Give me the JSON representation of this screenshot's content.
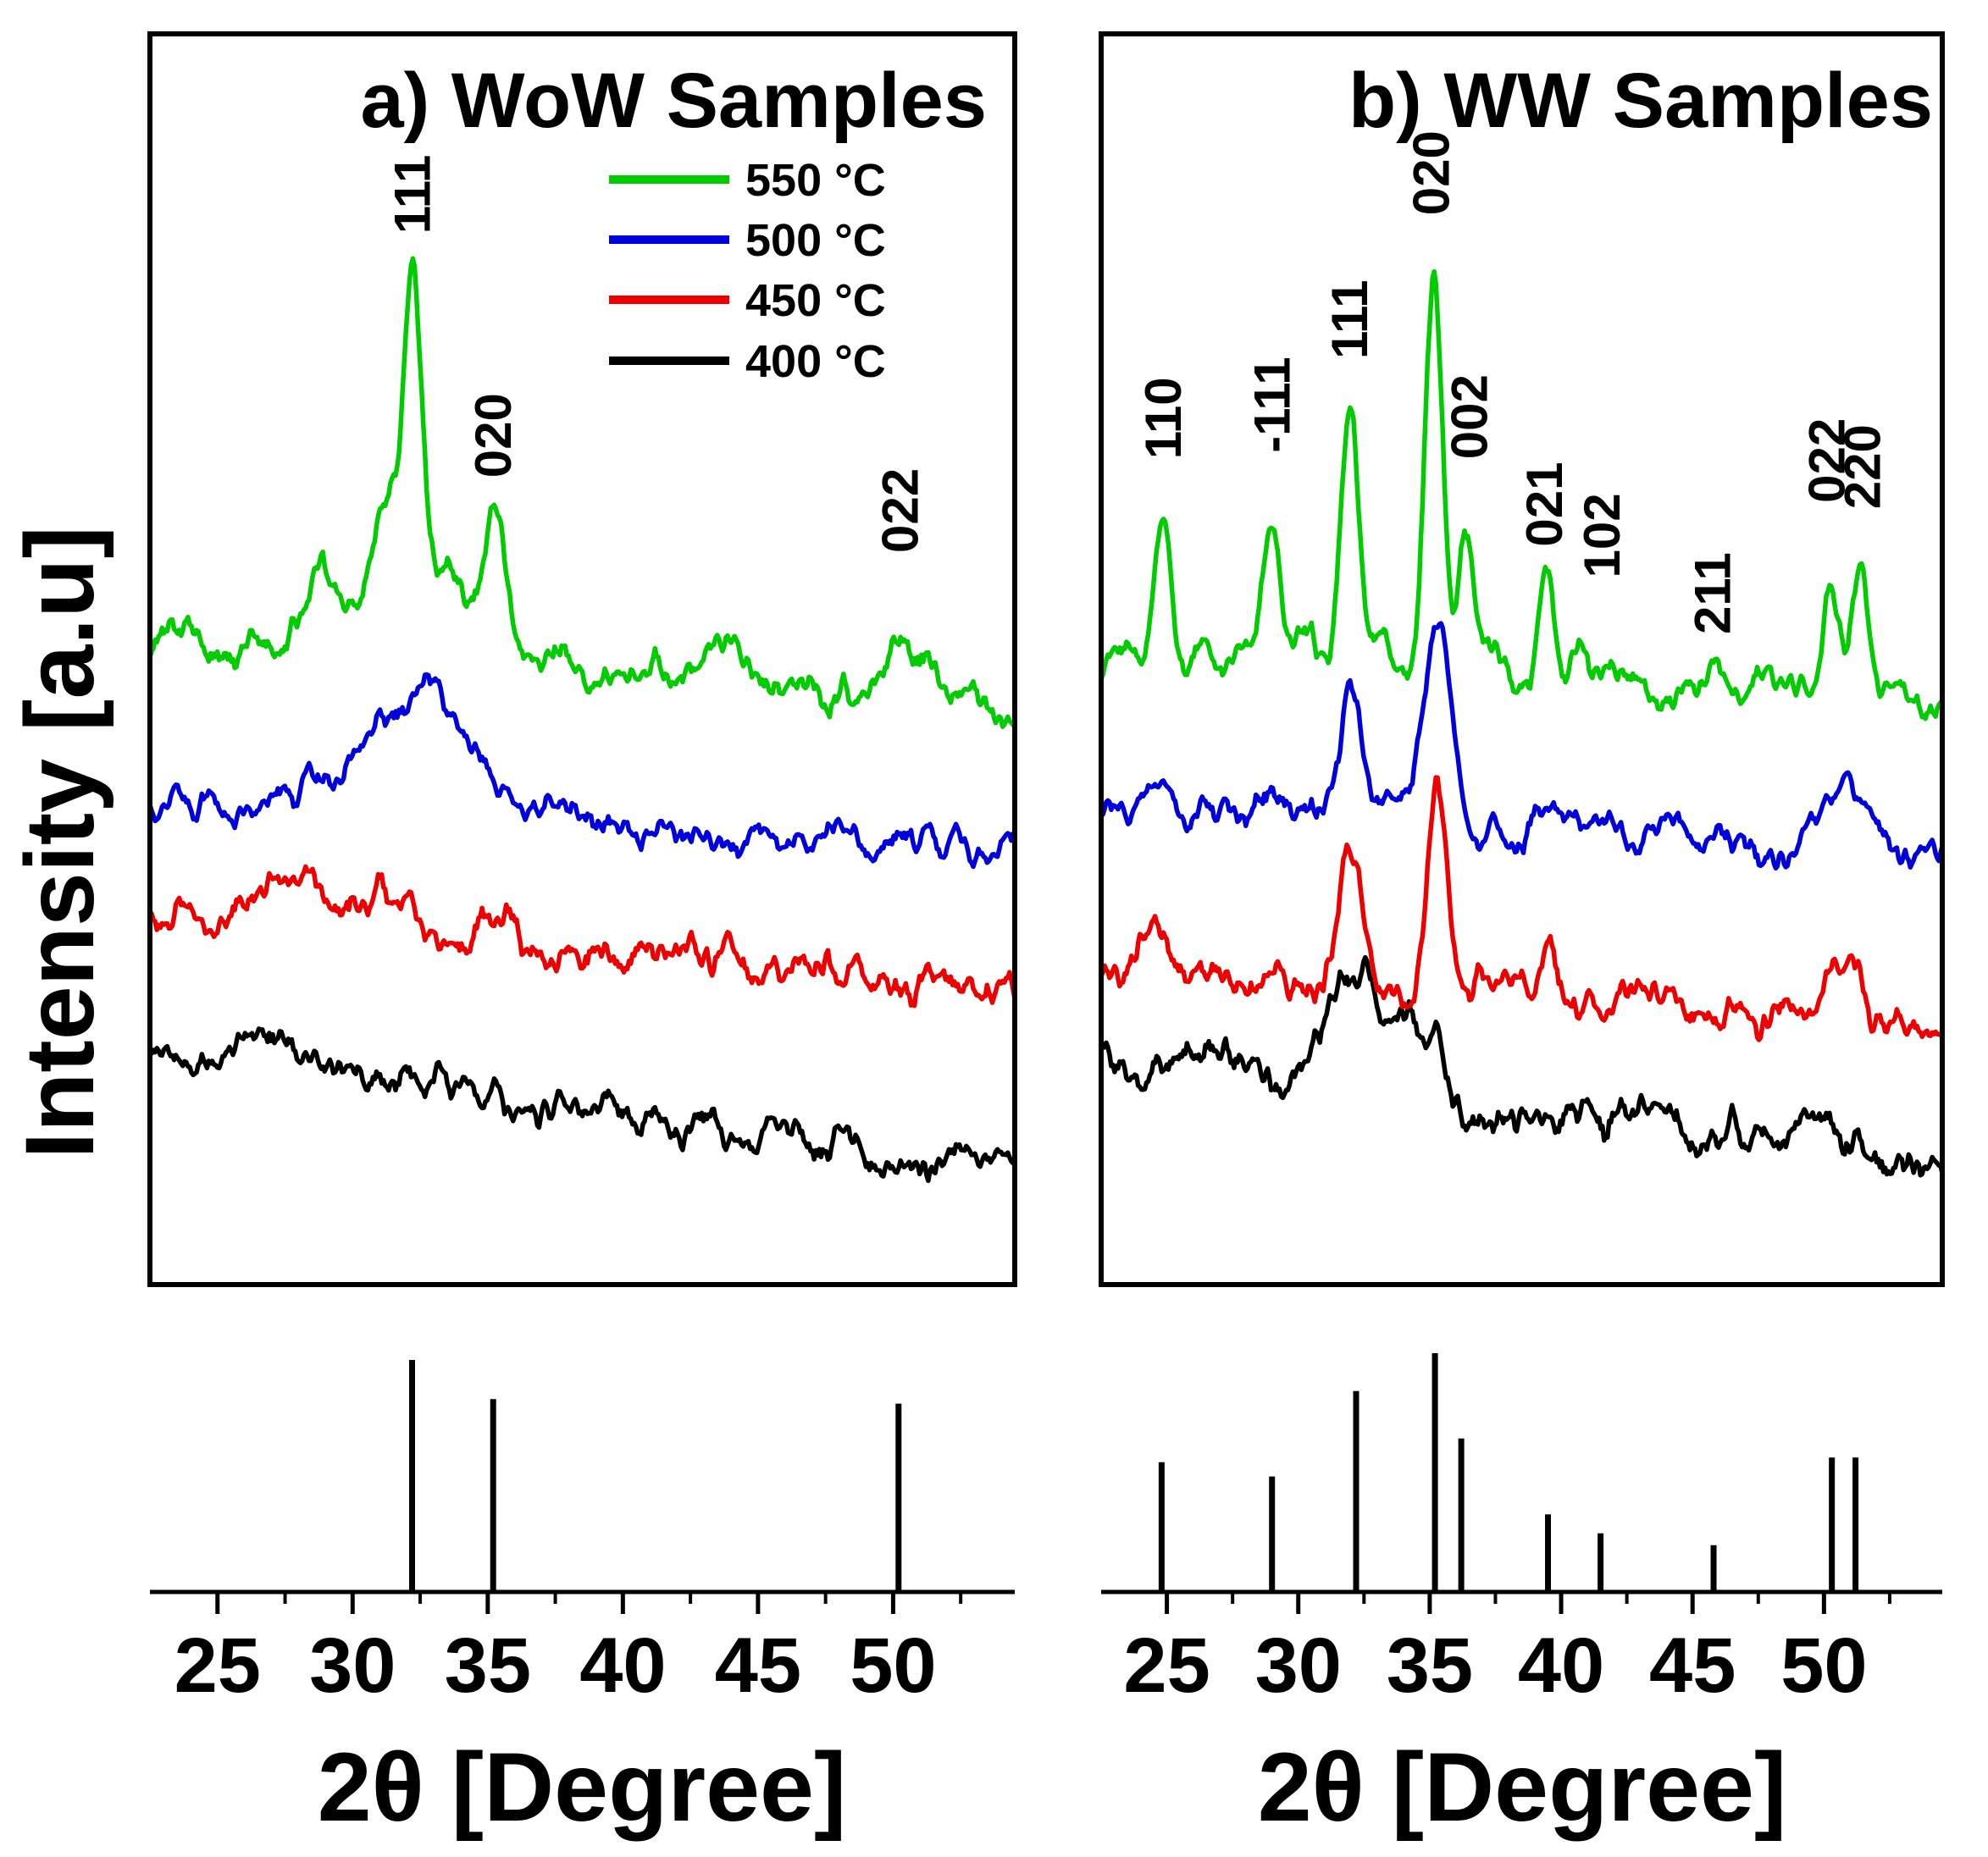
{
  "chart_data": {
    "type": "line",
    "description": "XRD patterns (intensity vs 2-theta) of WoW and WW samples annealed at four temperatures, with reference stick patterns below each panel",
    "xlabel": "2θ [Degree]",
    "ylabel": "Intensity [a.u]",
    "x_range": [
      22.5,
      54.5
    ],
    "x_major_ticks": [
      25,
      30,
      35,
      40,
      45,
      50
    ],
    "legend": {
      "position": "top-center-panel-a",
      "entries": [
        {
          "label": "550 °C",
          "color": "#00cc00"
        },
        {
          "label": "500 °C",
          "color": "#0000dd"
        },
        {
          "label": "450 °C",
          "color": "#ee0000"
        },
        {
          "label": "400 °C",
          "color": "#000000"
        }
      ]
    },
    "panels": [
      {
        "title": "a) WoW Samples",
        "peak_labels": [
          {
            "text": "111",
            "x": 32.2,
            "y": 0.84
          },
          {
            "text": "020",
            "x": 35.2,
            "y": 0.645
          },
          {
            "text": "022",
            "x": 50.25,
            "y": 0.585
          }
        ],
        "reference_sticks": [
          {
            "x": 32.2,
            "h": 1.0
          },
          {
            "x": 35.2,
            "h": 0.83
          },
          {
            "x": 50.2,
            "h": 0.81
          }
        ],
        "series": [
          {
            "name": "550 °C",
            "color": "#00cc00",
            "base": 0.515,
            "slope": -0.0016,
            "noise": 0.013,
            "peaks": [
              [
                28.7,
                0.04,
                0.5
              ],
              [
                31.4,
                0.085,
                0.55
              ],
              [
                32.25,
                0.23,
                0.32
              ],
              [
                33.4,
                0.035,
                0.4
              ],
              [
                35.25,
                0.115,
                0.45
              ],
              [
                31.5,
                0.05,
                2.2
              ],
              [
                43.3,
                0.028,
                0.7
              ],
              [
                46.0,
                0.012,
                0.5
              ],
              [
                50.3,
                0.045,
                0.55
              ],
              [
                51.4,
                0.02,
                0.4
              ]
            ]
          },
          {
            "name": "500 °C",
            "color": "#0000dd",
            "base": 0.385,
            "slope": -0.0011,
            "noise": 0.012,
            "peaks": [
              [
                32.6,
                0.1,
                1.6
              ],
              [
                28.8,
                0.025,
                1.0
              ],
              [
                38.5,
                0.012,
                1.0
              ]
            ]
          },
          {
            "name": "450 °C",
            "color": "#ee0000",
            "base": 0.3,
            "slope": -0.0021,
            "noise": 0.013,
            "peaks": [
              [
                28.4,
                0.028,
                0.7
              ],
              [
                26.8,
                0.02,
                0.6
              ],
              [
                31.3,
                0.03,
                1.0
              ],
              [
                35.8,
                0.012,
                0.8
              ],
              [
                43.5,
                0.012,
                0.8
              ]
            ]
          },
          {
            "name": "400 °C",
            "color": "#000000",
            "base": 0.182,
            "slope": -0.0027,
            "noise": 0.013,
            "peaks": [
              [
                27.3,
                0.022,
                1.2
              ],
              [
                31.8,
                0.012,
                0.8
              ],
              [
                38.8,
                0.01,
                0.8
              ]
            ]
          }
        ]
      },
      {
        "title": "b) WW Samples",
        "peak_labels": [
          {
            "text": "110",
            "x": 24.85,
            "y": 0.66
          },
          {
            "text": "-111",
            "x": 29.0,
            "y": 0.665
          },
          {
            "text": "111",
            "x": 31.95,
            "y": 0.74
          },
          {
            "text": "020",
            "x": 35.05,
            "y": 0.855
          },
          {
            "text": "002",
            "x": 36.5,
            "y": 0.66
          },
          {
            "text": "021",
            "x": 39.35,
            "y": 0.59
          },
          {
            "text": "102",
            "x": 41.55,
            "y": 0.565
          },
          {
            "text": "211",
            "x": 45.75,
            "y": 0.52
          },
          {
            "text": "022",
            "x": 50.1,
            "y": 0.625
          },
          {
            "text": "220",
            "x": 51.45,
            "y": 0.62
          }
        ],
        "reference_sticks": [
          {
            "x": 24.8,
            "h": 0.54
          },
          {
            "x": 29.0,
            "h": 0.48
          },
          {
            "x": 32.2,
            "h": 0.84
          },
          {
            "x": 35.2,
            "h": 1.0
          },
          {
            "x": 36.2,
            "h": 0.64
          },
          {
            "x": 39.5,
            "h": 0.32
          },
          {
            "x": 41.5,
            "h": 0.24
          },
          {
            "x": 45.8,
            "h": 0.19
          },
          {
            "x": 50.3,
            "h": 0.56
          },
          {
            "x": 51.2,
            "h": 0.56
          }
        ],
        "series": [
          {
            "name": "550 °C",
            "color": "#00cc00",
            "base": 0.505,
            "slope": -0.0013,
            "noise": 0.012,
            "peaks": [
              [
                24.85,
                0.115,
                0.3
              ],
              [
                26.3,
                0.022,
                0.3
              ],
              [
                29.0,
                0.125,
                0.32
              ],
              [
                30.3,
                0.02,
                0.3
              ],
              [
                31.95,
                0.215,
                0.35
              ],
              [
                33.1,
                0.03,
                0.3
              ],
              [
                35.15,
                0.315,
                0.33
              ],
              [
                36.35,
                0.11,
                0.3
              ],
              [
                37.4,
                0.022,
                0.3
              ],
              [
                39.4,
                0.09,
                0.28
              ],
              [
                40.7,
                0.035,
                0.3
              ],
              [
                41.7,
                0.02,
                0.3
              ],
              [
                45.85,
                0.028,
                0.3
              ],
              [
                48.1,
                0.014,
                0.4
              ],
              [
                50.25,
                0.085,
                0.3
              ],
              [
                51.35,
                0.1,
                0.3
              ]
            ]
          },
          {
            "name": "500 °C",
            "color": "#0000dd",
            "base": 0.375,
            "slope": -0.0009,
            "noise": 0.012,
            "peaks": [
              [
                24.8,
                0.04,
                0.45
              ],
              [
                26.6,
                0.018,
                0.5
              ],
              [
                29.0,
                0.035,
                0.45
              ],
              [
                31.95,
                0.105,
                0.42
              ],
              [
                33.5,
                0.022,
                0.4
              ],
              [
                35.3,
                0.17,
                0.5
              ],
              [
                39.6,
                0.025,
                0.45
              ],
              [
                44.2,
                0.012,
                0.5
              ],
              [
                50.3,
                0.04,
                0.5
              ],
              [
                51.35,
                0.045,
                0.5
              ]
            ]
          },
          {
            "name": "450 °C",
            "color": "#ee0000",
            "base": 0.25,
            "slope": -0.0014,
            "noise": 0.013,
            "peaks": [
              [
                24.6,
                0.028,
                0.5
              ],
              [
                29.0,
                0.02,
                0.45
              ],
              [
                31.9,
                0.115,
                0.45
              ],
              [
                35.3,
                0.165,
                0.42
              ],
              [
                37.1,
                0.02,
                0.4
              ],
              [
                39.5,
                0.035,
                0.4
              ],
              [
                44.6,
                0.01,
                0.5
              ],
              [
                50.3,
                0.03,
                0.5
              ],
              [
                51.2,
                0.035,
                0.5
              ]
            ]
          },
          {
            "name": "400 °C",
            "color": "#000000",
            "base": 0.178,
            "slope": -0.0023,
            "noise": 0.015,
            "peaks": [
              [
                26.9,
                0.02,
                1.2
              ],
              [
                31.85,
                0.085,
                1.0
              ],
              [
                33.9,
                0.055,
                1.0
              ],
              [
                35.4,
                0.025,
                0.5
              ]
            ]
          }
        ]
      }
    ]
  }
}
